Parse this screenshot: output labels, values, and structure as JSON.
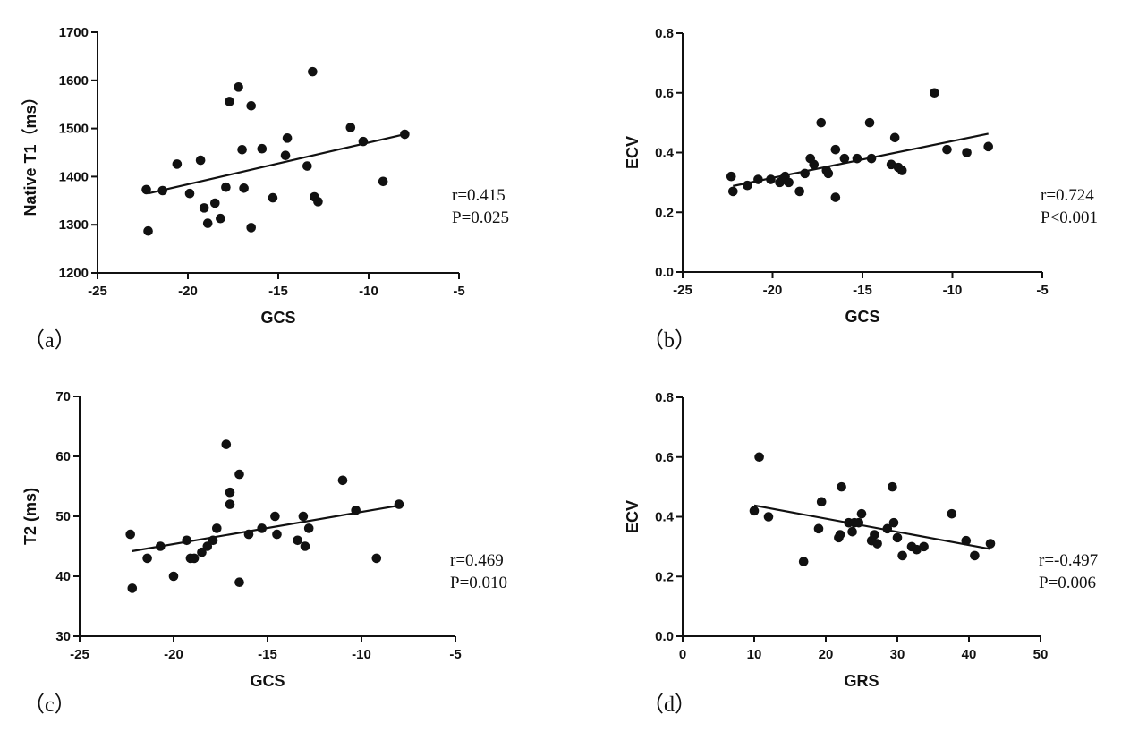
{
  "chart_data": [
    {
      "type": "scatter",
      "panel_label": "（a）",
      "xlabel": "GCS",
      "ylabel": "Native T1（ms）",
      "xlim": [
        -25,
        -5
      ],
      "ylim": [
        1200,
        1700
      ],
      "xticks": [
        "-25",
        "-20",
        "-15",
        "-10",
        "-5"
      ],
      "yticks": [
        "1200",
        "1300",
        "1400",
        "1500",
        "1600",
        "1700"
      ],
      "annotation": [
        "r=0.415",
        "P=0.025"
      ],
      "fit_line": {
        "x": [
          -22.2,
          -8.0
        ],
        "y": [
          1365,
          1488
        ]
      },
      "points": [
        [
          -22.3,
          1373
        ],
        [
          -22.2,
          1287
        ],
        [
          -21.4,
          1371
        ],
        [
          -20.6,
          1426
        ],
        [
          -19.9,
          1365
        ],
        [
          -19.3,
          1434
        ],
        [
          -19.1,
          1335
        ],
        [
          -18.9,
          1303
        ],
        [
          -18.5,
          1345
        ],
        [
          -18.2,
          1313
        ],
        [
          -17.9,
          1378
        ],
        [
          -17.7,
          1556
        ],
        [
          -17.2,
          1586
        ],
        [
          -17.0,
          1456
        ],
        [
          -16.9,
          1376
        ],
        [
          -16.5,
          1547
        ],
        [
          -16.5,
          1294
        ],
        [
          -15.9,
          1458
        ],
        [
          -15.3,
          1356
        ],
        [
          -14.6,
          1444
        ],
        [
          -14.5,
          1480
        ],
        [
          -13.4,
          1422
        ],
        [
          -13.1,
          1618
        ],
        [
          -13.0,
          1358
        ],
        [
          -12.8,
          1348
        ],
        [
          -11.0,
          1502
        ],
        [
          -10.3,
          1473
        ],
        [
          -9.2,
          1390
        ],
        [
          -8.0,
          1488
        ]
      ]
    },
    {
      "type": "scatter",
      "panel_label": "（b）",
      "xlabel": "GCS",
      "ylabel": "ECV",
      "xlim": [
        -25,
        -5
      ],
      "ylim": [
        0.0,
        0.8
      ],
      "xticks": [
        "-25",
        "-20",
        "-15",
        "-10",
        "-5"
      ],
      "yticks": [
        "0.0",
        "0.2",
        "0.4",
        "0.6",
        "0.8"
      ],
      "annotation": [
        "r=0.724",
        "P<0.001"
      ],
      "fit_line": {
        "x": [
          -22.2,
          -8.0
        ],
        "y": [
          0.288,
          0.463
        ]
      },
      "points": [
        [
          -22.3,
          0.32
        ],
        [
          -22.2,
          0.27
        ],
        [
          -21.4,
          0.29
        ],
        [
          -20.8,
          0.31
        ],
        [
          -20.1,
          0.31
        ],
        [
          -19.6,
          0.3
        ],
        [
          -19.4,
          0.31
        ],
        [
          -19.3,
          0.32
        ],
        [
          -19.1,
          0.3
        ],
        [
          -18.5,
          0.27
        ],
        [
          -18.2,
          0.33
        ],
        [
          -17.9,
          0.38
        ],
        [
          -17.7,
          0.36
        ],
        [
          -17.3,
          0.5
        ],
        [
          -17.0,
          0.34
        ],
        [
          -16.9,
          0.33
        ],
        [
          -16.5,
          0.41
        ],
        [
          -16.5,
          0.25
        ],
        [
          -16.0,
          0.38
        ],
        [
          -15.3,
          0.38
        ],
        [
          -14.6,
          0.5
        ],
        [
          -14.5,
          0.38
        ],
        [
          -13.4,
          0.36
        ],
        [
          -13.2,
          0.45
        ],
        [
          -13.0,
          0.35
        ],
        [
          -12.8,
          0.34
        ],
        [
          -11.0,
          0.6
        ],
        [
          -10.3,
          0.41
        ],
        [
          -9.2,
          0.4
        ],
        [
          -8.0,
          0.42
        ]
      ]
    },
    {
      "type": "scatter",
      "panel_label": "（c）",
      "xlabel": "GCS",
      "ylabel": "T2 (ms)",
      "xlim": [
        -25,
        -5
      ],
      "ylim": [
        30,
        70
      ],
      "xticks": [
        "-25",
        "-20",
        "-15",
        "-10",
        "-5"
      ],
      "yticks": [
        "30",
        "40",
        "50",
        "60",
        "70"
      ],
      "annotation": [
        "r=0.469",
        "P=0.010"
      ],
      "fit_line": {
        "x": [
          -22.2,
          -8.0
        ],
        "y": [
          44.2,
          51.8
        ]
      },
      "points": [
        [
          -22.3,
          47
        ],
        [
          -22.2,
          38
        ],
        [
          -21.4,
          43
        ],
        [
          -20.7,
          45
        ],
        [
          -20.0,
          40
        ],
        [
          -19.3,
          46
        ],
        [
          -19.1,
          43
        ],
        [
          -18.9,
          43
        ],
        [
          -18.5,
          44
        ],
        [
          -18.2,
          45
        ],
        [
          -17.9,
          46
        ],
        [
          -17.7,
          48
        ],
        [
          -17.2,
          62
        ],
        [
          -17.0,
          54
        ],
        [
          -17.0,
          52
        ],
        [
          -16.5,
          57
        ],
        [
          -16.5,
          39
        ],
        [
          -16.0,
          47
        ],
        [
          -15.3,
          48
        ],
        [
          -14.6,
          50
        ],
        [
          -14.5,
          47
        ],
        [
          -13.4,
          46
        ],
        [
          -13.1,
          50
        ],
        [
          -13.0,
          45
        ],
        [
          -12.8,
          48
        ],
        [
          -11.0,
          56
        ],
        [
          -10.3,
          51
        ],
        [
          -9.2,
          43
        ],
        [
          -8.0,
          52
        ]
      ]
    },
    {
      "type": "scatter",
      "panel_label": "（d）",
      "xlabel": "GRS",
      "ylabel": "ECV",
      "xlim": [
        0,
        50
      ],
      "ylim": [
        0.0,
        0.8
      ],
      "xticks": [
        "0",
        "10",
        "20",
        "30",
        "40",
        "50"
      ],
      "yticks": [
        "0.0",
        "0.2",
        "0.4",
        "0.6",
        "0.8"
      ],
      "annotation": [
        "r=-0.497",
        "P=0.006"
      ],
      "fit_line": {
        "x": [
          10.0,
          43.0
        ],
        "y": [
          0.438,
          0.292
        ]
      },
      "points": [
        [
          10.0,
          0.42
        ],
        [
          10.7,
          0.6
        ],
        [
          12.0,
          0.4
        ],
        [
          16.9,
          0.25
        ],
        [
          19.0,
          0.36
        ],
        [
          19.4,
          0.45
        ],
        [
          21.8,
          0.33
        ],
        [
          22.0,
          0.34
        ],
        [
          22.2,
          0.5
        ],
        [
          23.2,
          0.38
        ],
        [
          23.7,
          0.35
        ],
        [
          24.0,
          0.38
        ],
        [
          24.6,
          0.38
        ],
        [
          25.0,
          0.41
        ],
        [
          26.4,
          0.32
        ],
        [
          26.8,
          0.34
        ],
        [
          27.2,
          0.31
        ],
        [
          28.6,
          0.36
        ],
        [
          29.3,
          0.5
        ],
        [
          29.5,
          0.38
        ],
        [
          30.0,
          0.33
        ],
        [
          30.7,
          0.27
        ],
        [
          32.0,
          0.3
        ],
        [
          32.7,
          0.29
        ],
        [
          33.7,
          0.3
        ],
        [
          37.6,
          0.41
        ],
        [
          39.6,
          0.32
        ],
        [
          40.8,
          0.27
        ],
        [
          43.0,
          0.31
        ]
      ]
    }
  ]
}
